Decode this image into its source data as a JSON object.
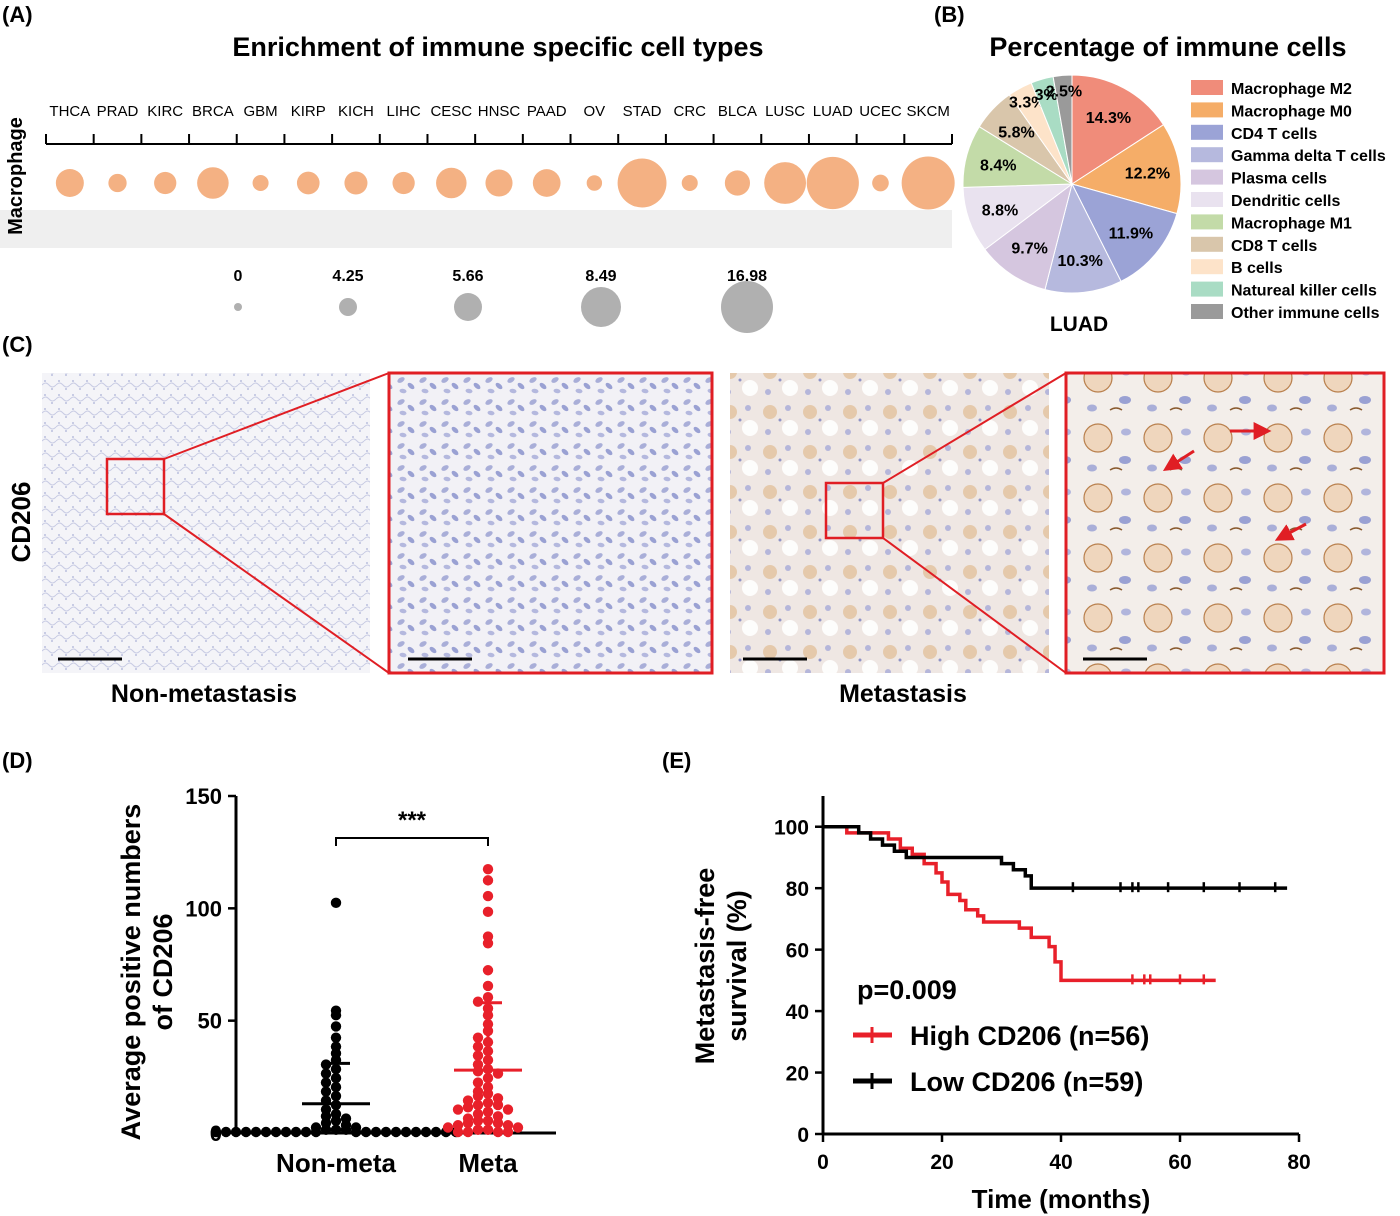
{
  "panels": {
    "A": {
      "label": "(A)",
      "title": "Enrichment of immune specific cell types",
      "row_label": "Macrophage",
      "chart_data": {
        "type": "bubble",
        "title": "Enrichment of immune specific cell types",
        "categories": [
          "THCA",
          "PRAD",
          "KIRC",
          "BRCA",
          "GBM",
          "KIRP",
          "KICH",
          "LIHC",
          "CESC",
          "HNSC",
          "PAAD",
          "OV",
          "STAD",
          "CRC",
          "BLCA",
          "LUSC",
          "LUAD",
          "UCEC",
          "SKCM"
        ],
        "rows": [
          "Macrophage"
        ],
        "values": [
          3.9,
          1.3,
          2.2,
          5.2,
          0.9,
          2.3,
          2.4,
          2.2,
          4.8,
          3.6,
          3.8,
          0.8,
          14.2,
          0.9,
          3.0,
          10.0,
          16.4,
          1.0,
          17.0
        ],
        "color": "#f4b183",
        "size_legend": [
          0,
          4.25,
          5.66,
          8.49,
          16.98
        ]
      }
    },
    "B": {
      "label": "(B)",
      "title": "Percentage of immune cells",
      "caption": "LUAD",
      "chart_data": {
        "type": "pie",
        "title": "Percentage of immune cells",
        "caption": "LUAD",
        "slices": [
          {
            "name": "Macrophage M2",
            "value": 14.3,
            "label": "14.3%",
            "color": "#f08c7a"
          },
          {
            "name": "Macrophage M0",
            "value": 12.2,
            "label": "12.2%",
            "color": "#f5ad68"
          },
          {
            "name": "CD4 T cells",
            "value": 11.9,
            "label": "11.9%",
            "color": "#9ba3d6"
          },
          {
            "name": "Gamma delta T cells",
            "value": 10.3,
            "label": "10.3%",
            "color": "#b6b9de"
          },
          {
            "name": "Plasma cells",
            "value": 9.7,
            "label": "9.7%",
            "color": "#d5c6df"
          },
          {
            "name": "Dendritic cells",
            "value": 8.8,
            "label": "8.8%",
            "color": "#e9e2ef"
          },
          {
            "name": "Macrophage M1",
            "value": 8.4,
            "label": "8.4%",
            "color": "#c3dba8"
          },
          {
            "name": "CD8 T cells",
            "value": 5.8,
            "label": "5.8%",
            "color": "#d9c6ab"
          },
          {
            "name": "B cells",
            "value": 3.3,
            "label": "3.3%",
            "color": "#fde3c9"
          },
          {
            "name": "Natureal killer cells",
            "value": 3.0,
            "label": "3%",
            "color": "#a9dcc4"
          },
          {
            "name": "Other immune cells",
            "value": 2.5,
            "label": "2.5%",
            "color": "#9a9a9a"
          }
        ]
      }
    },
    "C": {
      "label": "(C)",
      "row_label": "CD206",
      "captions": [
        "Non-metastasis",
        "Metastasis"
      ]
    },
    "D": {
      "label": "(D)",
      "significance": "***",
      "chart_data": {
        "type": "scatter",
        "ylabel": "Average positive numbers of CD206",
        "ylabel_lines": [
          "Average positive numbers",
          "of CD206"
        ],
        "categories": [
          "Non-meta",
          "Meta"
        ],
        "ylim": [
          0,
          150
        ],
        "yticks": [
          0,
          50,
          100,
          150
        ],
        "series": [
          {
            "name": "Non-meta",
            "color": "#000000",
            "mean": 13,
            "sd_upper": 31,
            "values": [
              102,
              54,
              52,
              47,
              42,
              38,
              35,
              32,
              30,
              28,
              26,
              24,
              22,
              20,
              18,
              16,
              14,
              12,
              10,
              8,
              7,
              6,
              5,
              4,
              3,
              2,
              2,
              1,
              1,
              1,
              0,
              0,
              0,
              0,
              0,
              0,
              0,
              0,
              0,
              0,
              0,
              0,
              0,
              0,
              0,
              0,
              0,
              0,
              0,
              0,
              0,
              0
            ]
          },
          {
            "name": "Meta",
            "color": "#e8202a",
            "mean": 28,
            "sd_upper": 58,
            "values": [
              117,
              112,
              105,
              98,
              87,
              84,
              72,
              65,
              60,
              58,
              55,
              52,
              48,
              45,
              42,
              40,
              38,
              36,
              34,
              32,
              30,
              28,
              27,
              26,
              24,
              22,
              20,
              18,
              17,
              16,
              15,
              14,
              13,
              12,
              12,
              11,
              10,
              10,
              9,
              8,
              7,
              6,
              5,
              5,
              4,
              4,
              3,
              3,
              2,
              2,
              1,
              1,
              0,
              0,
              0,
              0
            ]
          }
        ]
      }
    },
    "E": {
      "label": "(E)",
      "pvalue": "p=0.009",
      "chart_data": {
        "type": "line",
        "xlabel": "Time (months)",
        "ylabel": "Metastasis-free survival (%)",
        "ylabel_lines": [
          "Metastasis-free",
          "survival (%)"
        ],
        "xlim": [
          0,
          80
        ],
        "ylim": [
          0,
          110
        ],
        "xticks": [
          0,
          20,
          40,
          60,
          80
        ],
        "yticks": [
          0,
          20,
          40,
          60,
          80,
          100
        ],
        "series": [
          {
            "name": "High CD206 (n=56)",
            "color": "#e8202a",
            "points": [
              [
                0,
                100
              ],
              [
                4,
                100
              ],
              [
                4,
                98
              ],
              [
                11,
                98
              ],
              [
                11,
                96
              ],
              [
                13,
                96
              ],
              [
                13,
                93
              ],
              [
                15,
                93
              ],
              [
                15,
                91
              ],
              [
                17,
                91
              ],
              [
                17,
                88
              ],
              [
                19,
                88
              ],
              [
                19,
                85
              ],
              [
                20,
                85
              ],
              [
                20,
                82
              ],
              [
                21,
                82
              ],
              [
                21,
                78
              ],
              [
                23,
                78
              ],
              [
                23,
                76
              ],
              [
                24,
                76
              ],
              [
                24,
                73
              ],
              [
                26,
                73
              ],
              [
                26,
                71
              ],
              [
                27,
                71
              ],
              [
                27,
                69
              ],
              [
                33,
                69
              ],
              [
                33,
                67
              ],
              [
                35,
                67
              ],
              [
                35,
                64
              ],
              [
                38,
                64
              ],
              [
                38,
                61
              ],
              [
                39,
                61
              ],
              [
                39,
                56
              ],
              [
                40,
                56
              ],
              [
                40,
                50
              ],
              [
                66,
                50
              ]
            ]
          },
          {
            "name": "Low  CD206 (n=59)",
            "color": "#000000",
            "points": [
              [
                0,
                100
              ],
              [
                6,
                100
              ],
              [
                6,
                98
              ],
              [
                8,
                98
              ],
              [
                8,
                96
              ],
              [
                10,
                96
              ],
              [
                10,
                94
              ],
              [
                12,
                94
              ],
              [
                12,
                92
              ],
              [
                14,
                92
              ],
              [
                14,
                90
              ],
              [
                30,
                90
              ],
              [
                30,
                88
              ],
              [
                32,
                88
              ],
              [
                32,
                86
              ],
              [
                34,
                86
              ],
              [
                34,
                84
              ],
              [
                35,
                84
              ],
              [
                35,
                80
              ],
              [
                78,
                80
              ]
            ]
          }
        ]
      }
    }
  }
}
